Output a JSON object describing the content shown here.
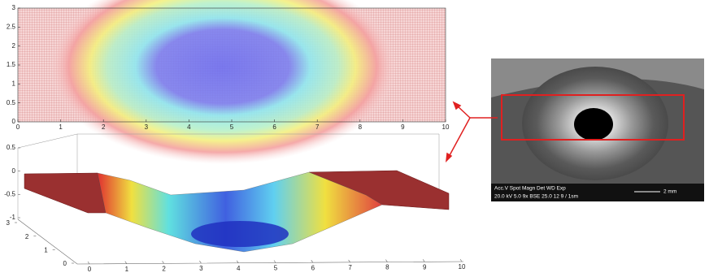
{
  "chart_data": [
    {
      "type": "contour",
      "xlim": [
        0,
        10
      ],
      "ylim": [
        0,
        3
      ],
      "xticks": [
        0,
        1,
        2,
        3,
        4,
        5,
        6,
        7,
        8,
        9,
        10
      ],
      "yticks": [
        0,
        0.5,
        1,
        1.5,
        2,
        2.5,
        3
      ]
    },
    {
      "type": "surface",
      "xlim": [
        0,
        10
      ],
      "ylim": [
        0,
        3
      ],
      "zlim": [
        -1,
        0.5
      ],
      "xticks": [
        0,
        1,
        2,
        3,
        4,
        5,
        6,
        7,
        8,
        9,
        10
      ],
      "yticks": [
        0,
        1,
        2,
        3
      ],
      "zticks": [
        0.5,
        0,
        -0.5,
        -1
      ]
    }
  ],
  "sem_image": {
    "caption_top": "Acc.V  Spot Magn    Det  WD  Exp",
    "caption_bottom": "20.0 kV 5.0  9x     BSE 25.0  12     9 / 1sm",
    "scale_bar": "2 mm"
  }
}
